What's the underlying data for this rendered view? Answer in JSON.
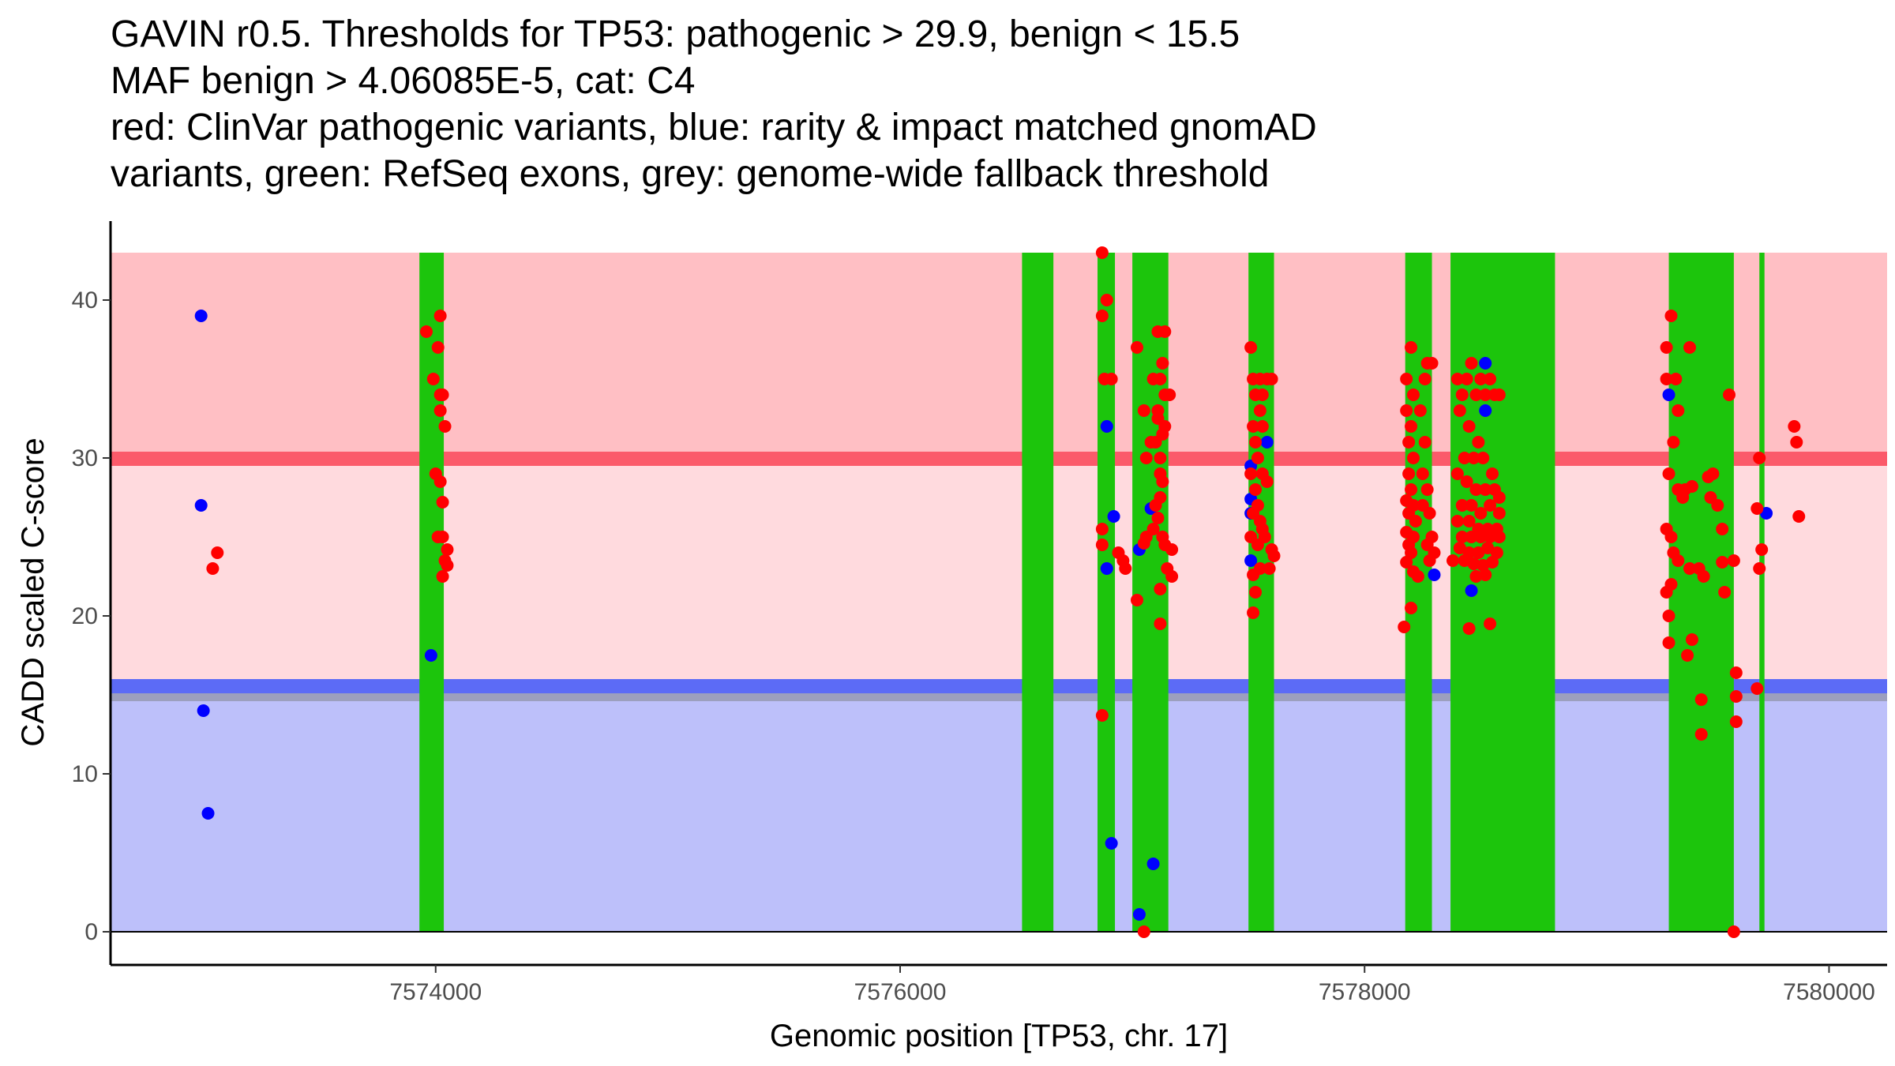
{
  "chart_data": {
    "type": "scatter",
    "title_lines": [
      "GAVIN r0.5. Thresholds for TP53: pathogenic > 29.9, benign < 15.5",
      "MAF benign > 4.06085E-5, cat: C4",
      "red: ClinVar pathogenic variants, blue: rarity & impact matched gnomAD",
      "variants, green: RefSeq exons, grey: genome-wide fallback threshold"
    ],
    "xlabel": "Genomic position [TP53, chr. 17]",
    "ylabel": "CADD scaled C-score",
    "xlim": [
      7572600,
      7580250
    ],
    "ylim": [
      -2.1,
      45
    ],
    "x_ticks": [
      7574000,
      7576000,
      7578000,
      7580000
    ],
    "x_tick_labels": [
      "7574000",
      "7576000",
      "7578000",
      "7580000"
    ],
    "y_ticks": [
      0,
      10,
      20,
      30,
      40
    ],
    "y_tick_labels": [
      "0",
      "10",
      "20",
      "30",
      "40"
    ],
    "grid": false,
    "thresholds": {
      "pathogenic": 29.9,
      "benign": 15.5,
      "genome_wide_fallback": 15
    },
    "background_bands": [
      {
        "name": "pathogenic-region",
        "y0": 30.4,
        "y1": 43,
        "color": "#FFBFC4"
      },
      {
        "name": "pathogenic-threshold",
        "y0": 29.5,
        "y1": 30.4,
        "color": "#FB5A6A"
      },
      {
        "name": "uncertain-region",
        "y0": 16,
        "y1": 29.5,
        "color": "#FFDADE"
      },
      {
        "name": "benign-threshold",
        "y0": 15.1,
        "y1": 16,
        "color": "#5C6BF6"
      },
      {
        "name": "fallback-threshold",
        "y0": 14.6,
        "y1": 15.1,
        "color": "#9C9FBE"
      },
      {
        "name": "benign-region",
        "y0": 0,
        "y1": 14.6,
        "color": "#BDC0FA"
      }
    ],
    "exons": [
      {
        "start": 7573930,
        "end": 7574035
      },
      {
        "start": 7576525,
        "end": 7576660
      },
      {
        "start": 7576850,
        "end": 7576925
      },
      {
        "start": 7577000,
        "end": 7577155
      },
      {
        "start": 7577500,
        "end": 7577610
      },
      {
        "start": 7578175,
        "end": 7578290
      },
      {
        "start": 7578370,
        "end": 7578820
      },
      {
        "start": 7579310,
        "end": 7579590
      },
      {
        "start": 7579700,
        "end": 7579722
      }
    ],
    "exon_ymax": 43,
    "colors": {
      "exon": "#1CC50C",
      "pathogenic": "#FF0000",
      "benign": "#0000FF",
      "axis": "#000000",
      "tick_label": "#4d4d4d"
    },
    "series": [
      {
        "name": "gnomAD matched variants",
        "color": "#0000FF",
        "points": [
          [
            7572990,
            39
          ],
          [
            7572990,
            27
          ],
          [
            7573000,
            14
          ],
          [
            7573020,
            7.5
          ],
          [
            7573980,
            17.5
          ],
          [
            7576890,
            32
          ],
          [
            7576890,
            23
          ],
          [
            7576910,
            5.6
          ],
          [
            7576920,
            26.3
          ],
          [
            7577030,
            24.2
          ],
          [
            7577080,
            26.8
          ],
          [
            7577090,
            4.3
          ],
          [
            7577030,
            1.1
          ],
          [
            7577510,
            29.5
          ],
          [
            7577510,
            27.4
          ],
          [
            7577510,
            26.5
          ],
          [
            7577510,
            23.5
          ],
          [
            7577580,
            31
          ],
          [
            7578300,
            22.6
          ],
          [
            7578460,
            21.6
          ],
          [
            7578520,
            36
          ],
          [
            7578520,
            33
          ],
          [
            7579310,
            34
          ],
          [
            7579730,
            26.5
          ]
        ]
      },
      {
        "name": "ClinVar pathogenic variants",
        "color": "#FF0000",
        "points": [
          [
            7573060,
            24
          ],
          [
            7573040,
            23
          ],
          [
            7573960,
            38
          ],
          [
            7573990,
            35
          ],
          [
            7574020,
            39
          ],
          [
            7574010,
            37
          ],
          [
            7574020,
            34
          ],
          [
            7574030,
            34
          ],
          [
            7574020,
            33
          ],
          [
            7574040,
            32
          ],
          [
            7574000,
            29
          ],
          [
            7574020,
            28.5
          ],
          [
            7574030,
            27.2
          ],
          [
            7574010,
            25
          ],
          [
            7574030,
            25
          ],
          [
            7574050,
            24.2
          ],
          [
            7574040,
            23.5
          ],
          [
            7574050,
            23.2
          ],
          [
            7574030,
            22.5
          ],
          [
            7576870,
            43
          ],
          [
            7576870,
            39
          ],
          [
            7576890,
            40
          ],
          [
            7576880,
            35
          ],
          [
            7576910,
            35
          ],
          [
            7576870,
            25.5
          ],
          [
            7576870,
            24.5
          ],
          [
            7576940,
            24
          ],
          [
            7576960,
            23.5
          ],
          [
            7576970,
            23
          ],
          [
            7576870,
            13.7
          ],
          [
            7577020,
            37
          ],
          [
            7577050,
            33
          ],
          [
            7577060,
            30
          ],
          [
            7577080,
            31
          ],
          [
            7577100,
            31
          ],
          [
            7577110,
            33
          ],
          [
            7577110,
            38
          ],
          [
            7577140,
            38
          ],
          [
            7577130,
            36
          ],
          [
            7577090,
            35
          ],
          [
            7577120,
            35
          ],
          [
            7577140,
            34
          ],
          [
            7577160,
            34
          ],
          [
            7577110,
            32.5
          ],
          [
            7577130,
            31.5
          ],
          [
            7577140,
            32
          ],
          [
            7577120,
            30
          ],
          [
            7577120,
            29
          ],
          [
            7577130,
            28.5
          ],
          [
            7577120,
            27.5
          ],
          [
            7577100,
            27
          ],
          [
            7577110,
            26.2
          ],
          [
            7577090,
            25.5
          ],
          [
            7577060,
            25
          ],
          [
            7577050,
            24.6
          ],
          [
            7577130,
            25
          ],
          [
            7577140,
            24.5
          ],
          [
            7577170,
            24.2
          ],
          [
            7577150,
            23
          ],
          [
            7577170,
            22.5
          ],
          [
            7577120,
            21.7
          ],
          [
            7577020,
            21
          ],
          [
            7577120,
            19.5
          ],
          [
            7577050,
            0
          ],
          [
            7577510,
            37
          ],
          [
            7577520,
            35
          ],
          [
            7577530,
            34
          ],
          [
            7577550,
            35
          ],
          [
            7577580,
            35
          ],
          [
            7577600,
            35
          ],
          [
            7577560,
            34
          ],
          [
            7577550,
            33
          ],
          [
            7577520,
            32
          ],
          [
            7577560,
            32
          ],
          [
            7577530,
            31
          ],
          [
            7577540,
            30
          ],
          [
            7577510,
            29
          ],
          [
            7577530,
            28
          ],
          [
            7577560,
            29
          ],
          [
            7577580,
            28.5
          ],
          [
            7577520,
            26.5
          ],
          [
            7577540,
            27
          ],
          [
            7577550,
            26
          ],
          [
            7577560,
            25.5
          ],
          [
            7577570,
            25
          ],
          [
            7577510,
            25
          ],
          [
            7577540,
            24.5
          ],
          [
            7577600,
            24.2
          ],
          [
            7577610,
            23.8
          ],
          [
            7577590,
            23
          ],
          [
            7577520,
            22.6
          ],
          [
            7577550,
            23
          ],
          [
            7577530,
            21.5
          ],
          [
            7577520,
            20.2
          ],
          [
            7578200,
            37
          ],
          [
            7578180,
            35
          ],
          [
            7578210,
            34
          ],
          [
            7578180,
            33
          ],
          [
            7578200,
            32
          ],
          [
            7578190,
            31
          ],
          [
            7578210,
            30
          ],
          [
            7578190,
            29
          ],
          [
            7578200,
            28
          ],
          [
            7578180,
            27.3
          ],
          [
            7578210,
            27
          ],
          [
            7578190,
            26.5
          ],
          [
            7578220,
            26
          ],
          [
            7578180,
            25.3
          ],
          [
            7578210,
            25
          ],
          [
            7578190,
            24.5
          ],
          [
            7578200,
            24
          ],
          [
            7578180,
            23.4
          ],
          [
            7578210,
            22.8
          ],
          [
            7578200,
            20.5
          ],
          [
            7578170,
            19.3
          ],
          [
            7578270,
            36
          ],
          [
            7578290,
            36
          ],
          [
            7578260,
            35
          ],
          [
            7578240,
            33
          ],
          [
            7578260,
            31
          ],
          [
            7578250,
            29
          ],
          [
            7578270,
            28
          ],
          [
            7578250,
            27
          ],
          [
            7578280,
            26.5
          ],
          [
            7578290,
            25
          ],
          [
            7578270,
            24.5
          ],
          [
            7578300,
            24
          ],
          [
            7578280,
            23.5
          ],
          [
            7578230,
            22.5
          ],
          [
            7578380,
            23.5
          ],
          [
            7578400,
            35
          ],
          [
            7578420,
            34
          ],
          [
            7578440,
            35
          ],
          [
            7578460,
            36
          ],
          [
            7578480,
            34
          ],
          [
            7578500,
            35
          ],
          [
            7578520,
            34
          ],
          [
            7578540,
            35
          ],
          [
            7578560,
            34
          ],
          [
            7578580,
            34
          ],
          [
            7578410,
            33
          ],
          [
            7578450,
            32
          ],
          [
            7578490,
            31
          ],
          [
            7578430,
            30
          ],
          [
            7578470,
            30
          ],
          [
            7578510,
            30
          ],
          [
            7578550,
            29
          ],
          [
            7578400,
            29
          ],
          [
            7578440,
            28.5
          ],
          [
            7578480,
            28
          ],
          [
            7578520,
            28
          ],
          [
            7578560,
            28
          ],
          [
            7578580,
            27.5
          ],
          [
            7578420,
            27
          ],
          [
            7578460,
            27
          ],
          [
            7578500,
            26.5
          ],
          [
            7578540,
            27
          ],
          [
            7578580,
            26.5
          ],
          [
            7578400,
            26
          ],
          [
            7578450,
            26
          ],
          [
            7578490,
            25.5
          ],
          [
            7578530,
            25.5
          ],
          [
            7578570,
            25.5
          ],
          [
            7578420,
            25
          ],
          [
            7578460,
            25
          ],
          [
            7578500,
            25
          ],
          [
            7578540,
            25
          ],
          [
            7578580,
            25
          ],
          [
            7578410,
            24.3
          ],
          [
            7578450,
            24
          ],
          [
            7578490,
            24
          ],
          [
            7578530,
            24.3
          ],
          [
            7578570,
            24
          ],
          [
            7578430,
            23.5
          ],
          [
            7578470,
            23.3
          ],
          [
            7578510,
            23.2
          ],
          [
            7578550,
            23.4
          ],
          [
            7578480,
            22.5
          ],
          [
            7578520,
            22.6
          ],
          [
            7578450,
            19.2
          ],
          [
            7578540,
            19.5
          ],
          [
            7579300,
            37
          ],
          [
            7579300,
            35
          ],
          [
            7579320,
            39
          ],
          [
            7579340,
            35
          ],
          [
            7579350,
            33
          ],
          [
            7579330,
            31
          ],
          [
            7579400,
            37
          ],
          [
            7579310,
            29
          ],
          [
            7579350,
            28
          ],
          [
            7579380,
            28
          ],
          [
            7579410,
            28.2
          ],
          [
            7579370,
            27.5
          ],
          [
            7579300,
            25.5
          ],
          [
            7579320,
            25
          ],
          [
            7579330,
            24
          ],
          [
            7579350,
            23.5
          ],
          [
            7579300,
            21.5
          ],
          [
            7579320,
            22
          ],
          [
            7579310,
            20
          ],
          [
            7579310,
            18.3
          ],
          [
            7579390,
            17.5
          ],
          [
            7579410,
            18.5
          ],
          [
            7579400,
            23
          ],
          [
            7579440,
            23
          ],
          [
            7579460,
            22.5
          ],
          [
            7579450,
            12.5
          ],
          [
            7579450,
            14.7
          ],
          [
            7579480,
            28.8
          ],
          [
            7579490,
            27.5
          ],
          [
            7579520,
            27
          ],
          [
            7579500,
            29
          ],
          [
            7579540,
            25.5
          ],
          [
            7579540,
            23.4
          ],
          [
            7579550,
            21.5
          ],
          [
            7579570,
            34
          ],
          [
            7579590,
            23.5
          ],
          [
            7579600,
            16.4
          ],
          [
            7579600,
            14.9
          ],
          [
            7579600,
            13.3
          ],
          [
            7579590,
            0
          ],
          [
            7579690,
            26.8
          ],
          [
            7579700,
            30
          ],
          [
            7579700,
            23
          ],
          [
            7579710,
            24.2
          ],
          [
            7579690,
            15.4
          ],
          [
            7579850,
            32
          ],
          [
            7579860,
            31
          ],
          [
            7579870,
            26.3
          ]
        ]
      }
    ]
  }
}
